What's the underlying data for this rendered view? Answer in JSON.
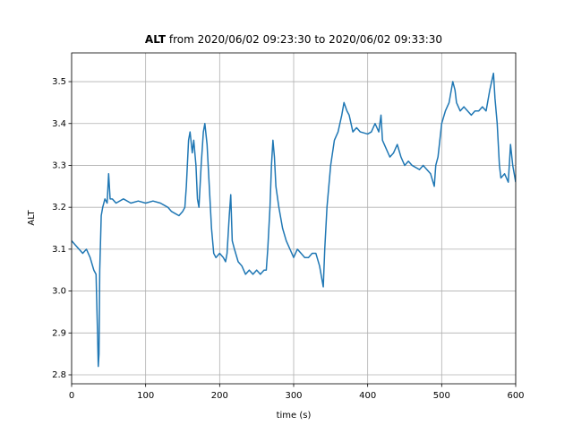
{
  "chart_data": {
    "type": "line",
    "title_bold": "ALT",
    "title": "from 2020/06/02 09:23:30 to 2020/06/02 09:33:30",
    "x_label": "time (s)",
    "y_label": "ALT",
    "x": [
      0,
      5,
      10,
      15,
      20,
      25,
      30,
      33,
      35,
      36,
      37,
      38,
      40,
      42,
      45,
      48,
      50,
      52,
      55,
      60,
      70,
      80,
      90,
      100,
      110,
      120,
      130,
      135,
      140,
      145,
      150,
      153,
      155,
      158,
      160,
      163,
      165,
      168,
      170,
      172,
      175,
      178,
      180,
      183,
      186,
      189,
      192,
      195,
      200,
      205,
      208,
      210,
      213,
      215,
      217,
      220,
      225,
      230,
      235,
      240,
      245,
      250,
      255,
      260,
      263,
      265,
      268,
      270,
      272,
      274,
      276,
      280,
      285,
      290,
      295,
      300,
      305,
      310,
      315,
      320,
      325,
      330,
      335,
      338,
      340,
      342,
      345,
      350,
      355,
      360,
      365,
      368,
      372,
      375,
      380,
      385,
      390,
      400,
      405,
      410,
      415,
      418,
      420,
      425,
      430,
      435,
      440,
      445,
      450,
      455,
      460,
      470,
      475,
      480,
      485,
      490,
      492,
      495,
      500,
      505,
      510,
      515,
      518,
      520,
      525,
      530,
      540,
      545,
      550,
      555,
      560,
      565,
      570,
      572,
      575,
      578,
      580,
      585,
      590,
      593,
      596,
      600
    ],
    "series": [
      {
        "name": "ALT",
        "color": "#1f77b4",
        "values": [
          3.12,
          3.11,
          3.1,
          3.09,
          3.1,
          3.08,
          3.05,
          3.04,
          2.9,
          2.82,
          2.85,
          3.05,
          3.18,
          3.2,
          3.22,
          3.21,
          3.28,
          3.22,
          3.22,
          3.21,
          3.22,
          3.21,
          3.215,
          3.21,
          3.215,
          3.21,
          3.2,
          3.19,
          3.185,
          3.18,
          3.19,
          3.2,
          3.25,
          3.36,
          3.38,
          3.33,
          3.36,
          3.3,
          3.22,
          3.2,
          3.3,
          3.38,
          3.4,
          3.35,
          3.25,
          3.15,
          3.09,
          3.08,
          3.09,
          3.08,
          3.07,
          3.09,
          3.18,
          3.23,
          3.12,
          3.1,
          3.07,
          3.06,
          3.04,
          3.05,
          3.04,
          3.05,
          3.04,
          3.05,
          3.05,
          3.1,
          3.2,
          3.3,
          3.36,
          3.32,
          3.25,
          3.2,
          3.15,
          3.12,
          3.1,
          3.08,
          3.1,
          3.09,
          3.08,
          3.08,
          3.09,
          3.09,
          3.06,
          3.03,
          3.01,
          3.1,
          3.2,
          3.3,
          3.36,
          3.38,
          3.42,
          3.45,
          3.43,
          3.42,
          3.38,
          3.39,
          3.38,
          3.375,
          3.38,
          3.4,
          3.38,
          3.42,
          3.36,
          3.34,
          3.32,
          3.33,
          3.35,
          3.32,
          3.3,
          3.31,
          3.3,
          3.29,
          3.3,
          3.29,
          3.28,
          3.25,
          3.3,
          3.32,
          3.4,
          3.43,
          3.45,
          3.5,
          3.48,
          3.45,
          3.43,
          3.44,
          3.42,
          3.43,
          3.43,
          3.44,
          3.43,
          3.48,
          3.52,
          3.46,
          3.4,
          3.3,
          3.27,
          3.28,
          3.26,
          3.35,
          3.3,
          3.26
        ]
      }
    ],
    "xlim": [
      0,
      600
    ],
    "ylim": [
      2.7786,
      3.5686
    ],
    "xticks": [
      0,
      100,
      200,
      300,
      400,
      500,
      600
    ],
    "yticks": [
      2.8,
      2.9,
      {
        "value": 3,
        "label": "3.0"
      },
      3.1,
      3.2,
      3.3,
      3.4,
      3.5
    ],
    "grid": true
  }
}
